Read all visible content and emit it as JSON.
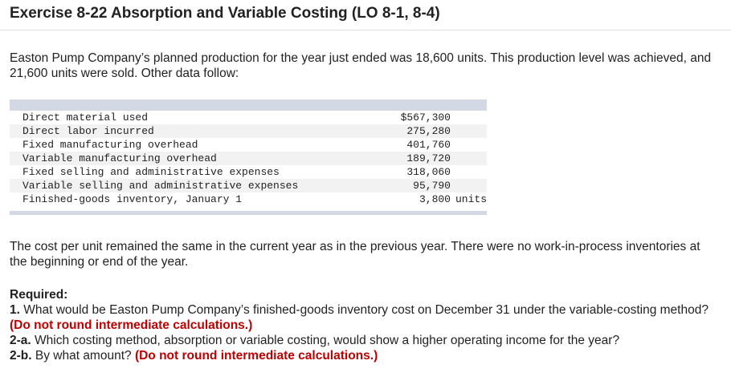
{
  "header": {
    "title": "Exercise 8-22 Absorption and Variable Costing (LO 8-1, 8-4)"
  },
  "intro": "Easton Pump Company’s planned production for the year just ended was 18,600 units. This production level was achieved, and 21,600 units were sold. Other data follow:",
  "table": {
    "rows": [
      [
        "Direct material used",
        "$567,300",
        ""
      ],
      [
        "Direct labor incurred",
        "275,280",
        ""
      ],
      [
        "Fixed manufacturing overhead",
        "401,760",
        ""
      ],
      [
        "Variable manufacturing overhead",
        "189,720",
        ""
      ],
      [
        "Fixed selling and administrative expenses",
        "318,060",
        ""
      ],
      [
        "Variable selling and administrative expenses",
        "95,790",
        ""
      ],
      [
        "Finished-goods inventory, January 1",
        "3,800",
        "units"
      ]
    ]
  },
  "paragraph2": "The cost per unit remained the same in the current year as in the previous year. There were no work-in-process inventories at the beginning or end of the year.",
  "required": {
    "heading": "Required:",
    "items": [
      {
        "number": "1.",
        "text": "What would be Easton Pump Company’s finished-goods inventory cost on December 31 under the variable-costing method?",
        "note": "(Do not round intermediate calculations.)"
      },
      {
        "number": "2-a.",
        "text": "Which costing method, absorption or variable costing, would show a higher operating income for the year?"
      },
      {
        "number": "2-b.",
        "text": "By what amount?",
        "note": "(Do not round intermediate calculations.)"
      }
    ]
  }
}
